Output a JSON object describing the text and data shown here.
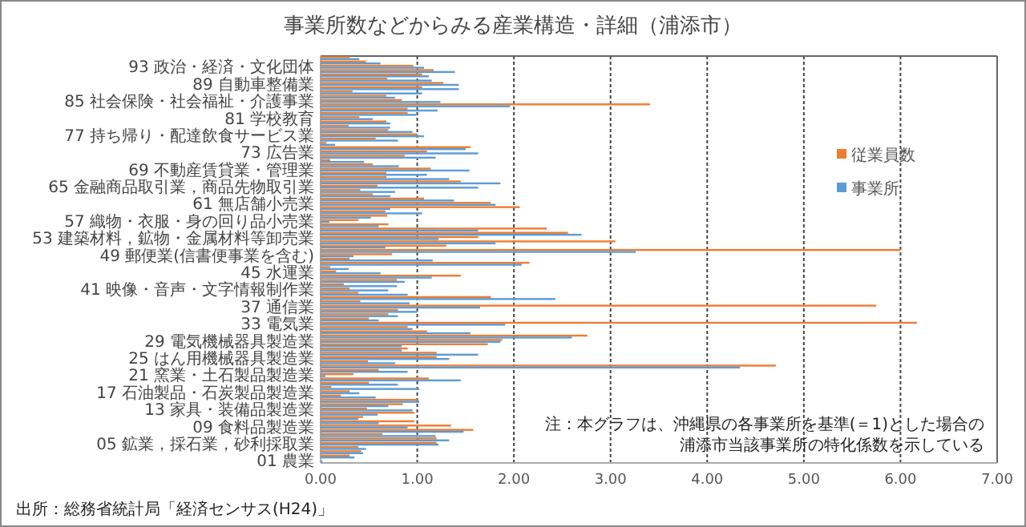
{
  "chart_data": {
    "type": "bar",
    "orientation": "horizontal",
    "title": "事業所数などからみる産業構造・詳細（浦添市）",
    "categories": [
      null,
      null,
      "93 政治・経済・文化団体",
      null,
      null,
      null,
      "89 自動車整備業",
      null,
      null,
      null,
      "85 社会保険・社会福祉・介護事業",
      null,
      null,
      null,
      "81 学校教育",
      null,
      null,
      null,
      "77 持ち帰り・配達飲食サービス業",
      null,
      null,
      null,
      "73 広告業",
      null,
      null,
      null,
      "69 不動産賃貸業・管理業",
      null,
      null,
      null,
      "65 金融商品取引業，商品先物取引業",
      null,
      null,
      null,
      "61 無店舗小売業",
      null,
      null,
      null,
      "57 織物・衣服・身の回り品小売業",
      null,
      null,
      null,
      "53 建築材料，鉱物・金属材料等卸売業",
      null,
      null,
      null,
      "49 郵便業(信書便事業を含む)",
      null,
      null,
      null,
      "45 水運業",
      null,
      null,
      null,
      "41 映像・音声・文字情報制作業",
      null,
      null,
      null,
      "37 通信業",
      null,
      null,
      null,
      "33 電気業",
      null,
      null,
      null,
      "29 電気機械器具製造業",
      null,
      null,
      null,
      "25 はん用機械器具製造業",
      null,
      null,
      null,
      "21 窯業・土石製品製造業",
      null,
      null,
      null,
      "17 石油製品・石炭製品製造業",
      null,
      null,
      null,
      "13 家具・装備品製造業",
      null,
      null,
      null,
      "09 食料品製造業",
      null,
      null,
      null,
      "05 鉱業，採石業，砂利採取業",
      null,
      null,
      null,
      "01 農業"
    ],
    "series": [
      {
        "name": "従業員数",
        "color": "#ed7d31",
        "values": [
          0.3,
          0.47,
          0.96,
          1.17,
          1.05,
          0.69,
          1.27,
          1.05,
          0.33,
          0.68,
          0.84,
          3.41,
          0.9,
          0.9,
          0.4,
          0.68,
          0.29,
          0.7,
          1.0,
          0.57,
          0.06,
          1.55,
          1.1,
          0.87,
          0.1,
          0.54,
          1.14,
          0.68,
          0.68,
          1.45,
          0.59,
          0.41,
          0.54,
          1.07,
          1.76,
          2.06,
          0.67,
          0.69,
          0.39,
          0.7,
          2.34,
          2.56,
          1.63,
          3.05,
          1.3,
          6.0,
          0.74,
          0.3,
          2.16,
          0.1,
          0.16,
          1.45,
          0.79,
          0.24,
          0.3,
          0.39,
          1.76,
          0.41,
          5.75,
          0.8,
          0.7,
          0.5,
          6.17,
          0.9,
          1.1,
          2.76,
          1.88,
          1.73,
          0.9,
          1.2,
          1.2,
          0.49,
          4.71,
          0.6,
          0.34,
          1.12,
          0.5,
          0.11,
          0.3,
          0.21,
          1.0,
          0.85,
          0.48,
          0.97,
          0.44,
          0.97,
          1.35,
          1.58,
          0.64,
          1.2,
          1.2,
          0.39,
          0.42,
          0.3,
          0
        ]
      },
      {
        "name": "事業所",
        "color": "#5b9bd5",
        "values": [
          0.4,
          0.62,
          1.07,
          1.39,
          1.12,
          1.15,
          1.43,
          1.43,
          1.05,
          0.77,
          1.24,
          1.96,
          1.21,
          0.99,
          0.54,
          0.72,
          0.72,
          0.95,
          1.07,
          0.8,
          0.15,
          1.5,
          1.63,
          1.19,
          0.45,
          0.81,
          1.54,
          1.1,
          1.33,
          1.86,
          1.63,
          0.77,
          0.72,
          1.38,
          1.81,
          0.72,
          1.05,
          0.52,
          0.09,
          0.6,
          1.63,
          2.7,
          1.22,
          1.81,
          0.67,
          3.26,
          0.34,
          1.16,
          2.08,
          0.29,
          0.62,
          1.15,
          0.87,
          0.79,
          0.7,
          0.9,
          2.43,
          0.92,
          1.65,
          1.0,
          0.8,
          0.6,
          1.91,
          0.95,
          1.55,
          2.6,
          1.86,
          0.84,
          0.84,
          1.63,
          1.33,
          0.77,
          4.34,
          0.9,
          0.05,
          1.45,
          0.8,
          1.02,
          0.4,
          0.57,
          1.02,
          0.7,
          0.95,
          0.59,
          0.39,
          0.6,
          0.9,
          1.48,
          1.19,
          1.33,
          1.22,
          0.47,
          0.44,
          0.35,
          0.02
        ]
      }
    ],
    "xlim": [
      0,
      7
    ],
    "xticks": [
      {
        "value": 0,
        "label": "0.00"
      },
      {
        "value": 1,
        "label": "1.00"
      },
      {
        "value": 2,
        "label": "2.00"
      },
      {
        "value": 3,
        "label": "3.00"
      },
      {
        "value": 4,
        "label": "4.00"
      },
      {
        "value": 5,
        "label": "5.00"
      },
      {
        "value": 6,
        "label": "6.00"
      },
      {
        "value": 7,
        "label": "7.00"
      }
    ],
    "grid": "x",
    "legend": "right",
    "annotations": [
      "注：本グラフは、沖縄県の各事業所を基準(＝1)とした場合の",
      "浦添市当該事業所の特化係数を示している",
      "出所：総務省統計局「経済センサス(H24)」"
    ]
  }
}
